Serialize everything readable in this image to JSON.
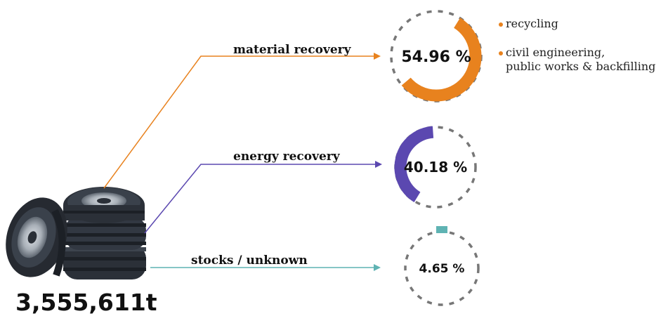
{
  "total_label": "3,555,611t",
  "flows": [
    {
      "id": "material",
      "label": "material recovery",
      "percent_label": "54.96 %",
      "value": 54.96,
      "color": "#e8821e"
    },
    {
      "id": "energy",
      "label": "energy recovery",
      "percent_label": "40.18 %",
      "value": 40.18,
      "color": "#5b48b0"
    },
    {
      "id": "stocks",
      "label": "stocks / unknown",
      "percent_label": "4.65 %",
      "value": 4.65,
      "color": "#5fb3b3"
    }
  ],
  "legend": [
    {
      "lines": [
        "recycling"
      ],
      "color": "#e8821e"
    },
    {
      "lines": [
        "civil engineering,",
        "public works & backfilling"
      ],
      "color": "#e8821e"
    }
  ],
  "icons": {
    "source": "tire-stack-icon"
  }
}
